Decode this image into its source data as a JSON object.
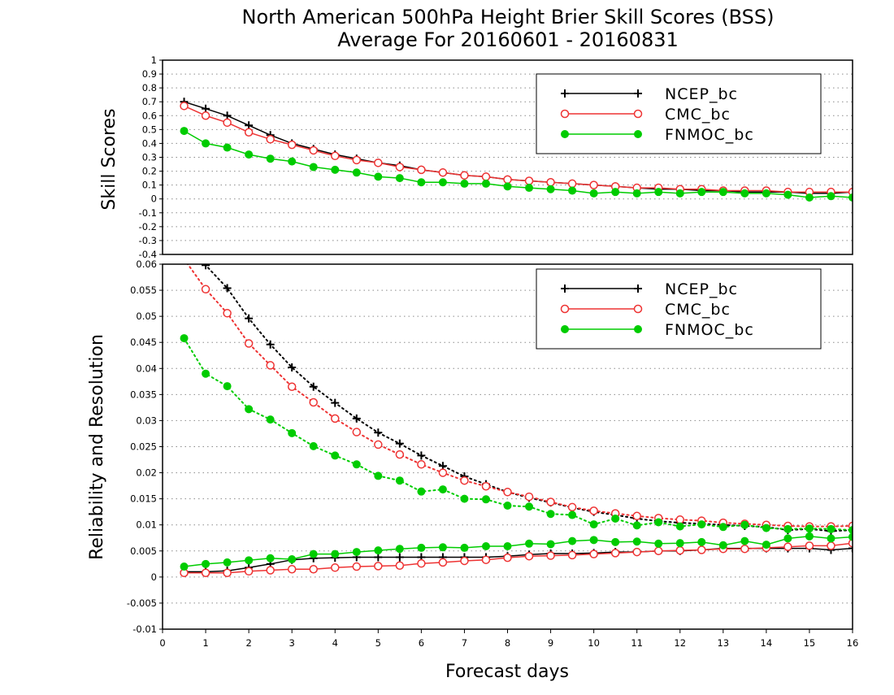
{
  "title_line1": "North American 500hPa Height Brier Skill Scores (BSS)",
  "title_line2": "Average For 20160601 - 20160831",
  "chart_data": [
    {
      "type": "line",
      "panel": "top",
      "ylabel": "Skill Scores",
      "ylim": [
        -0.4,
        1.0
      ],
      "yticks": [
        -0.4,
        -0.3,
        -0.2,
        -0.1,
        0,
        0.1,
        0.2,
        0.3,
        0.4,
        0.5,
        0.6,
        0.7,
        0.8,
        0.9,
        1
      ],
      "ytick_labels": [
        "-0.4",
        "-0.3",
        "-0.2",
        "-0.1",
        "0",
        "0.1",
        "0.2",
        "0.3",
        "0.4",
        "0.5",
        "0.6",
        "0.7",
        "0.8",
        "0.9",
        "1"
      ],
      "grid": "horizontal dotted",
      "legend_position": "top-right",
      "x": [
        0.5,
        1,
        1.5,
        2,
        2.5,
        3,
        3.5,
        4,
        4.5,
        5,
        5.5,
        6,
        6.5,
        7,
        7.5,
        8,
        8.5,
        9,
        9.5,
        10,
        10.5,
        11,
        11.5,
        12,
        12.5,
        13,
        13.5,
        14,
        14.5,
        15,
        15.5,
        16
      ],
      "series": [
        {
          "name": "NCEP_bc",
          "color": "#000000",
          "marker": "plus",
          "values": [
            0.7,
            0.65,
            0.6,
            0.53,
            0.46,
            0.4,
            0.36,
            0.32,
            0.29,
            0.26,
            0.24,
            0.21,
            0.19,
            0.17,
            0.16,
            0.14,
            0.13,
            0.12,
            0.11,
            0.1,
            0.09,
            0.08,
            0.07,
            0.07,
            0.06,
            0.06,
            0.05,
            0.05,
            0.05,
            0.04,
            0.04,
            0.05
          ]
        },
        {
          "name": "CMC_bc",
          "color": "#ee3333",
          "marker": "open-circle",
          "values": [
            0.67,
            0.6,
            0.55,
            0.48,
            0.43,
            0.39,
            0.35,
            0.31,
            0.28,
            0.26,
            0.23,
            0.21,
            0.19,
            0.17,
            0.16,
            0.14,
            0.13,
            0.12,
            0.11,
            0.1,
            0.09,
            0.08,
            0.08,
            0.07,
            0.07,
            0.06,
            0.06,
            0.06,
            0.05,
            0.05,
            0.05,
            0.05
          ]
        },
        {
          "name": "FNMOC_bc",
          "color": "#00cc00",
          "marker": "filled-circle",
          "values": [
            0.49,
            0.4,
            0.37,
            0.32,
            0.29,
            0.27,
            0.23,
            0.21,
            0.19,
            0.16,
            0.15,
            0.12,
            0.12,
            0.11,
            0.11,
            0.09,
            0.08,
            0.07,
            0.06,
            0.04,
            0.05,
            0.04,
            0.05,
            0.04,
            0.05,
            0.05,
            0.04,
            0.04,
            0.03,
            0.01,
            0.02,
            0.01
          ]
        }
      ]
    },
    {
      "type": "line",
      "panel": "bottom",
      "ylabel": "Reliability and Resolution",
      "xlabel": "Forecast days",
      "xlim": [
        0,
        16
      ],
      "xticks": [
        0,
        1,
        2,
        3,
        4,
        5,
        6,
        7,
        8,
        9,
        10,
        11,
        12,
        13,
        14,
        15,
        16
      ],
      "xtick_labels": [
        "0",
        "1",
        "2",
        "3",
        "4",
        "5",
        "6",
        "7",
        "8",
        "9",
        "10",
        "11",
        "12",
        "13",
        "14",
        "15",
        "16"
      ],
      "ylim": [
        -0.01,
        0.06
      ],
      "yticks": [
        -0.01,
        -0.005,
        0,
        0.005,
        0.01,
        0.015,
        0.02,
        0.025,
        0.03,
        0.035,
        0.04,
        0.045,
        0.05,
        0.055,
        0.06
      ],
      "ytick_labels": [
        "-0.01",
        "-0.005",
        "0",
        "0.005",
        "0.01",
        "0.015",
        "0.02",
        "0.025",
        "0.03",
        "0.035",
        "0.04",
        "0.045",
        "0.05",
        "0.055",
        "0.06"
      ],
      "grid": "horizontal dotted",
      "legend_position": "top-right",
      "x": [
        0.5,
        1,
        1.5,
        2,
        2.5,
        3,
        3.5,
        4,
        4.5,
        5,
        5.5,
        6,
        6.5,
        7,
        7.5,
        8,
        8.5,
        9,
        9.5,
        10,
        10.5,
        11,
        11.5,
        12,
        12.5,
        13,
        13.5,
        14,
        14.5,
        15,
        15.5,
        16
      ],
      "series": [
        {
          "name": "NCEP_bc",
          "color": "#000000",
          "marker": "plus",
          "style": "dotted",
          "role": "reliability",
          "values": [
            0.0625,
            0.0598,
            0.0554,
            0.0496,
            0.0446,
            0.0402,
            0.0365,
            0.0334,
            0.0304,
            0.0277,
            0.0256,
            0.0233,
            0.0213,
            0.0193,
            0.0178,
            0.0163,
            0.0152,
            0.0143,
            0.0133,
            0.0125,
            0.0119,
            0.0112,
            0.0107,
            0.0104,
            0.0102,
            0.01,
            0.0098,
            0.0096,
            0.009,
            0.0092,
            0.0088,
            0.009
          ]
        },
        {
          "name": "CMC_bc",
          "color": "#ee3333",
          "marker": "open-circle",
          "style": "dotted",
          "role": "reliability",
          "values": [
            0.061,
            0.0552,
            0.0506,
            0.0448,
            0.0406,
            0.0365,
            0.0335,
            0.0304,
            0.0278,
            0.0254,
            0.0235,
            0.0216,
            0.02,
            0.0185,
            0.0174,
            0.0163,
            0.0154,
            0.0144,
            0.0134,
            0.0127,
            0.0122,
            0.0117,
            0.0113,
            0.011,
            0.0108,
            0.0104,
            0.0102,
            0.01,
            0.0098,
            0.0097,
            0.0097,
            0.0098
          ]
        },
        {
          "name": "FNMOC_bc",
          "color": "#00cc00",
          "marker": "filled-circle",
          "style": "dotted",
          "role": "reliability",
          "values": [
            0.0458,
            0.039,
            0.0366,
            0.0322,
            0.0302,
            0.0276,
            0.0251,
            0.0233,
            0.0216,
            0.0194,
            0.0185,
            0.0164,
            0.0168,
            0.015,
            0.0149,
            0.0137,
            0.0135,
            0.0121,
            0.0119,
            0.0101,
            0.0112,
            0.0099,
            0.0105,
            0.0097,
            0.0101,
            0.0096,
            0.01,
            0.0094,
            0.0092,
            0.0093,
            0.0092,
            0.009
          ]
        },
        {
          "name": "NCEP_bc",
          "color": "#000000",
          "marker": "plus",
          "style": "solid",
          "role": "resolution",
          "values": [
            0.001,
            0.001,
            0.0012,
            0.0018,
            0.0025,
            0.0033,
            0.0036,
            0.0037,
            0.0038,
            0.0038,
            0.0038,
            0.0038,
            0.0038,
            0.0038,
            0.0038,
            0.004,
            0.0043,
            0.0045,
            0.0045,
            0.0046,
            0.0048,
            0.0048,
            0.005,
            0.005,
            0.0052,
            0.0055,
            0.0055,
            0.0055,
            0.0055,
            0.0055,
            0.0052,
            0.0055
          ]
        },
        {
          "name": "CMC_bc",
          "color": "#ee3333",
          "marker": "open-circle",
          "style": "solid",
          "role": "resolution",
          "values": [
            0.0008,
            0.0008,
            0.0008,
            0.0011,
            0.0013,
            0.0015,
            0.0015,
            0.0018,
            0.002,
            0.0021,
            0.0022,
            0.0026,
            0.0028,
            0.0031,
            0.0033,
            0.0037,
            0.004,
            0.0041,
            0.0042,
            0.0044,
            0.0046,
            0.0048,
            0.005,
            0.0051,
            0.0052,
            0.0054,
            0.0054,
            0.0056,
            0.0058,
            0.006,
            0.006,
            0.0065
          ]
        },
        {
          "name": "FNMOC_bc",
          "color": "#00cc00",
          "marker": "filled-circle",
          "style": "solid",
          "role": "resolution",
          "values": [
            0.002,
            0.0025,
            0.0028,
            0.0032,
            0.0036,
            0.0034,
            0.0044,
            0.0044,
            0.0048,
            0.0051,
            0.0054,
            0.0056,
            0.0057,
            0.0056,
            0.0059,
            0.0059,
            0.0064,
            0.0063,
            0.0069,
            0.0071,
            0.0067,
            0.0068,
            0.0064,
            0.0065,
            0.0067,
            0.0061,
            0.0069,
            0.0062,
            0.0074,
            0.0078,
            0.0074,
            0.0077
          ]
        }
      ]
    }
  ]
}
